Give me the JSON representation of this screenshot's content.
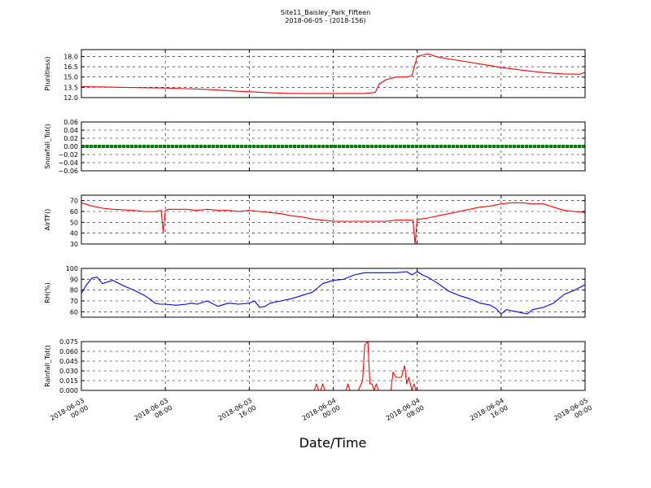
{
  "figure": {
    "title": "Site11_Baisley_Park_Fifteen",
    "subtitle": "2018-06-05 - (2018-156)",
    "xlabel": "Date/Time",
    "x_ticks": [
      {
        "t": 0,
        "label": [
          "2018-06-03",
          "00:00"
        ]
      },
      {
        "t": 8,
        "label": [
          "2018-06-03",
          "08:00"
        ]
      },
      {
        "t": 16,
        "label": [
          "2018-06-03",
          "16:00"
        ]
      },
      {
        "t": 24,
        "label": [
          "2018-06-04",
          "00:00"
        ]
      },
      {
        "t": 32,
        "label": [
          "2018-06-04",
          "08:00"
        ]
      },
      {
        "t": 40,
        "label": [
          "2018-06-04",
          "16:00"
        ]
      },
      {
        "t": 48,
        "label": [
          "2018-06-05",
          "00:00"
        ]
      }
    ]
  },
  "chart_data": [
    {
      "type": "line",
      "ylabel": "P(unitless)",
      "ylim": [
        12.0,
        19.0
      ],
      "yticks": [
        "12.0",
        "13.5",
        "15.0",
        "16.5",
        "18.0"
      ],
      "ytick_values": [
        12.0,
        13.5,
        15.0,
        16.5,
        18.0
      ],
      "color": "#ff0000",
      "grid": true,
      "x": [
        0,
        2,
        4,
        6,
        8,
        10,
        12,
        14,
        16,
        18,
        20,
        22,
        24,
        26,
        27,
        28,
        28.4,
        29,
        30,
        30.5,
        31,
        31.5,
        32,
        33,
        34,
        36,
        38,
        40,
        42,
        44,
        46,
        47.5,
        48
      ],
      "values": [
        13.6,
        13.55,
        13.5,
        13.45,
        13.4,
        13.3,
        13.2,
        13.0,
        12.85,
        12.7,
        12.6,
        12.6,
        12.6,
        12.6,
        12.6,
        12.75,
        14.0,
        14.6,
        15.0,
        15.0,
        15.0,
        15.2,
        18.0,
        18.4,
        17.9,
        17.4,
        16.9,
        16.4,
        16.0,
        15.65,
        15.45,
        15.4,
        15.7
      ]
    },
    {
      "type": "line",
      "ylabel": "Snowfall_Tot()",
      "ylim": [
        -0.06,
        0.06
      ],
      "yticks": [
        "−0.06",
        "−0.04",
        "−0.02",
        "0.00",
        "0.02",
        "0.04",
        "0.06"
      ],
      "ytick_values": [
        -0.06,
        -0.04,
        -0.02,
        0.0,
        0.02,
        0.04,
        0.06
      ],
      "color": "#008000",
      "markers": true,
      "grid": true,
      "x": [
        0,
        48
      ],
      "values": [
        0.0,
        0.0
      ]
    },
    {
      "type": "line",
      "ylabel": "AirTF()",
      "ylim": [
        30,
        75
      ],
      "yticks": [
        "30",
        "40",
        "50",
        "60",
        "70"
      ],
      "ytick_values": [
        30,
        40,
        50,
        60,
        70
      ],
      "color": "#ff0000",
      "grid": true,
      "x": [
        0,
        1,
        2,
        3,
        5,
        6,
        7,
        7.6,
        7.8,
        8.0,
        8.3,
        9,
        10,
        11,
        12,
        13,
        14,
        15,
        16,
        17,
        18,
        19,
        20,
        21,
        22,
        23,
        24,
        26,
        27,
        28,
        29,
        30,
        31,
        31.6,
        31.8,
        32.0,
        32.3,
        33,
        34,
        35,
        36,
        37,
        38,
        39,
        40,
        41,
        42,
        43,
        44,
        45,
        46,
        47,
        48
      ],
      "values": [
        68,
        65,
        63,
        62,
        61,
        60,
        60,
        61,
        41,
        61,
        62,
        62,
        62,
        61,
        62,
        61,
        61,
        60,
        61,
        60,
        59,
        58,
        56,
        55,
        53,
        52,
        51,
        51,
        51,
        51,
        51,
        52,
        52,
        52,
        30,
        53,
        53,
        54,
        56,
        58,
        60,
        62,
        64,
        65,
        67,
        68,
        68,
        67,
        67,
        64,
        61,
        60,
        59
      ]
    },
    {
      "type": "line",
      "ylabel": "RH(%)",
      "ylim": [
        55,
        100
      ],
      "yticks": [
        "60",
        "70",
        "80",
        "90",
        "100"
      ],
      "ytick_values": [
        60,
        70,
        80,
        90,
        100
      ],
      "color": "#0000ff",
      "grid": true,
      "x": [
        0,
        0.5,
        1,
        1.5,
        2,
        3,
        4,
        5,
        6,
        6.5,
        7,
        7.5,
        8,
        9,
        10,
        10.5,
        11,
        12,
        13,
        14,
        15,
        16,
        16.5,
        17,
        17.5,
        18,
        19,
        20,
        21,
        22,
        22.5,
        23,
        24,
        25,
        26,
        27,
        28,
        29,
        30,
        31,
        31.5,
        32,
        32.5,
        33,
        34,
        35,
        36,
        37,
        38,
        39,
        39.5,
        40,
        40.5,
        41,
        42,
        42.5,
        43,
        44,
        45,
        46,
        47,
        48
      ],
      "values": [
        77,
        85,
        91,
        92,
        86,
        89,
        84,
        80,
        75,
        72,
        68,
        67,
        67,
        66,
        67,
        68,
        67,
        70,
        65,
        68,
        67,
        68,
        70,
        64,
        65,
        68,
        70,
        72,
        75,
        78,
        82,
        86,
        89,
        90,
        94,
        96,
        96,
        96,
        96,
        97,
        94,
        97,
        94,
        92,
        86,
        79,
        75,
        72,
        68,
        66,
        63,
        58,
        62,
        61,
        59,
        58,
        62,
        64,
        68,
        76,
        80,
        85
      ]
    },
    {
      "type": "line",
      "ylabel": "Rainfall_Tot()",
      "ylim": [
        0,
        0.075
      ],
      "yticks": [
        "0.000",
        "0.015",
        "0.030",
        "0.045",
        "0.060",
        "0.075"
      ],
      "ytick_values": [
        0.0,
        0.015,
        0.03,
        0.045,
        0.06,
        0.075
      ],
      "color": "#ff0000",
      "grid": true,
      "x": [
        0,
        22.2,
        22.4,
        22.6,
        22.8,
        23.0,
        23.2,
        25.2,
        25.4,
        25.6,
        26.4,
        26.8,
        27.0,
        27.3,
        27.5,
        27.7,
        27.9,
        28.1,
        28.3,
        29.5,
        29.7,
        30.0,
        30.5,
        30.8,
        31.0,
        31.2,
        31.5,
        31.7,
        31.9,
        32.2,
        48
      ],
      "values": [
        0,
        0,
        0.01,
        0,
        0,
        0.01,
        0,
        0,
        0.01,
        0,
        0,
        0.015,
        0.07,
        0.075,
        0.01,
        0.01,
        0,
        0.01,
        0,
        0,
        0.028,
        0.02,
        0.02,
        0.038,
        0.01,
        0.02,
        0,
        0.01,
        0,
        0,
        0
      ]
    }
  ]
}
